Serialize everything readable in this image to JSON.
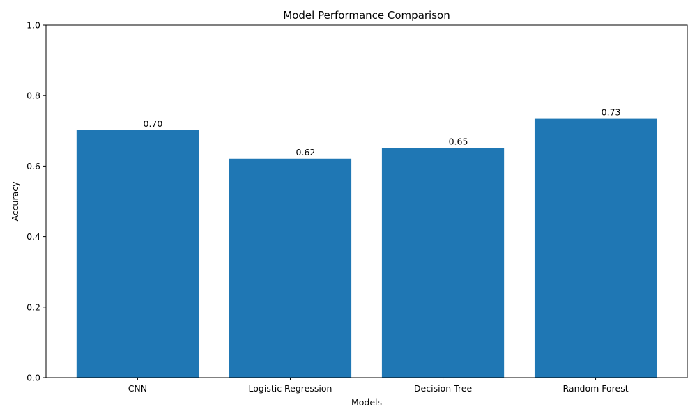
{
  "chart_data": {
    "type": "bar",
    "title": "Model Performance Comparison",
    "xlabel": "Models",
    "ylabel": "Accuracy",
    "categories": [
      "CNN",
      "Logistic Regression",
      "Decision Tree",
      "Random Forest"
    ],
    "values": [
      0.702,
      0.621,
      0.651,
      0.734
    ],
    "value_labels": [
      "0.70",
      "0.62",
      "0.65",
      "0.73"
    ],
    "ylim": [
      0,
      1
    ],
    "yticks": [
      0.0,
      0.2,
      0.4,
      0.6,
      0.8,
      1.0
    ],
    "ytick_labels": [
      "0.0",
      "0.2",
      "0.4",
      "0.6",
      "0.8",
      "1.0"
    ],
    "grid": false,
    "bar_color": "#1f77b4"
  }
}
